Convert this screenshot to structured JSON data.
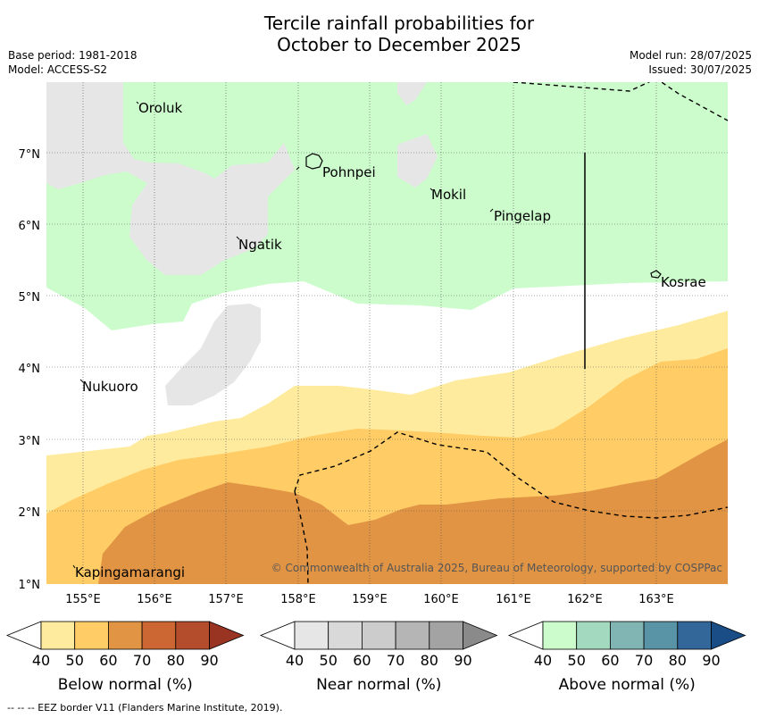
{
  "title_line1": "Tercile rainfall probabilities for",
  "title_line2": "October to December 2025",
  "base_period": "Base period: 1981-2018",
  "model": "Model: ACCESS-S2",
  "model_run": "Model run: 28/07/2025",
  "issued": "Issued: 30/07/2025",
  "copyright": "© Commonwealth of Australia 2025, Bureau of Meteorology, supported by COSPPac",
  "footnote": "--  --  -- EEZ border V11 (Flanders Marine Institute, 2019).",
  "map": {
    "lon_ticks": [
      "155°E",
      "156°E",
      "157°E",
      "158°E",
      "159°E",
      "160°E",
      "161°E",
      "162°E",
      "163°E"
    ],
    "lat_ticks": [
      "1°N",
      "2°N",
      "3°N",
      "4°N",
      "5°N",
      "6°N",
      "7°N"
    ],
    "places": {
      "oroluk": "Oroluk",
      "pohnpei": "Pohnpei",
      "mokil": "Mokil",
      "pingelap": "Pingelap",
      "ngatik": "Ngatik",
      "kosrae": "Kosrae",
      "nukuoro": "Nukuoro",
      "kapingamarangi": "Kapingamarangi"
    },
    "colors": {
      "land_none": "#ffffff",
      "near_40": "#e6e6e6",
      "above_40": "#ccfccc",
      "below_40": "#ffeb9e",
      "below_50": "#ffcc66",
      "below_60": "#e09444"
    }
  },
  "colorbars": [
    {
      "label": "Below normal (%)",
      "ticks": [
        "40",
        "50",
        "60",
        "70",
        "80",
        "90"
      ],
      "colors": [
        "#ffeb9e",
        "#ffcc66",
        "#e09444",
        "#cc6633",
        "#b34d2b",
        "#993322"
      ]
    },
    {
      "label": "Near normal (%)",
      "ticks": [
        "40",
        "50",
        "60",
        "70",
        "80",
        "90"
      ],
      "colors": [
        "#e6e6e6",
        "#d9d9d9",
        "#cccccc",
        "#b5b5b5",
        "#a3a3a3",
        "#8a8a8a"
      ]
    },
    {
      "label": "Above normal (%)",
      "ticks": [
        "40",
        "50",
        "60",
        "70",
        "80",
        "90"
      ],
      "colors": [
        "#ccfccc",
        "#a3d9bf",
        "#80b5b3",
        "#5994a6",
        "#336699",
        "#1a4d85"
      ]
    }
  ]
}
